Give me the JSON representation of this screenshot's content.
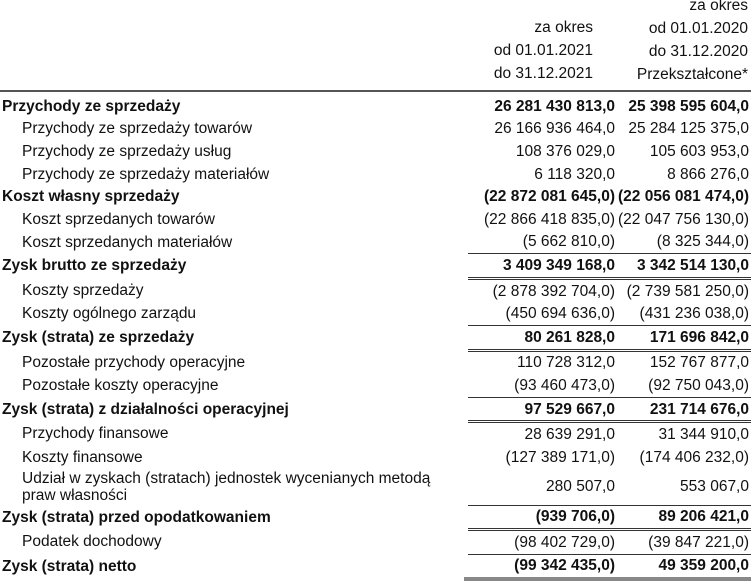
{
  "header": {
    "col_2021": [
      "za okres",
      "od 01.01.2021",
      "do 31.12.2021"
    ],
    "col_2020": [
      "za okres",
      "od 01.01.2020",
      "do 31.12.2020",
      "Przekształcone*"
    ]
  },
  "rows": [
    {
      "label": "Przychody ze sprzedaży",
      "v2021": "26 281 430 813,0",
      "v2020": "25 398 595 604,0",
      "bold": true
    },
    {
      "label": "Przychody ze sprzedaży towarów",
      "v2021": "26 166 936 464,0",
      "v2020": "25 284 125 375,0"
    },
    {
      "label": "Przychody ze sprzedaży usług",
      "v2021": "108 376 029,0",
      "v2020": "105 603 953,0"
    },
    {
      "label": "Przychody ze sprzedaży materiałów",
      "v2021": "6 118 320,0",
      "v2020": "8 866 276,0"
    },
    {
      "label": "Koszt własny sprzedaży",
      "v2021": "(22 872 081 645,0)",
      "v2020": "(22 056 081 474,0)",
      "bold": true
    },
    {
      "label": "Koszt sprzedanych towarów",
      "v2021": "(22 866 418 835,0)",
      "v2020": "(22 047 756 130,0)"
    },
    {
      "label": "Koszt sprzedanych materiałów",
      "v2021": "(5 662 810,0)",
      "v2020": "(8 325 344,0)"
    },
    {
      "label": "Zysk brutto ze sprzedaży",
      "v2021": "3 409 349 168,0",
      "v2020": "3 342 514 130,0",
      "bold": true
    },
    {
      "label": "Koszty sprzedaży",
      "v2021": "(2 878 392 704,0)",
      "v2020": "(2 739 581 250,0)"
    },
    {
      "label": "Koszty ogólnego zarządu",
      "v2021": "(450 694 636,0)",
      "v2020": "(431 236 038,0)"
    },
    {
      "label": "Zysk (strata) ze sprzedaży",
      "v2021": "80 261 828,0",
      "v2020": "171 696 842,0",
      "bold": true
    },
    {
      "label": "Pozostałe przychody operacyjne",
      "v2021": "110 728 312,0",
      "v2020": "152 767 877,0"
    },
    {
      "label": "Pozostałe koszty operacyjne",
      "v2021": "(93 460 473,0)",
      "v2020": "(92 750 043,0)"
    },
    {
      "label": "Zysk (strata) z działalności operacyjnej",
      "v2021": "97 529 667,0",
      "v2020": "231 714 676,0",
      "bold": true
    },
    {
      "label": "Przychody finansowe",
      "v2021": "28 639 291,0",
      "v2020": "31 344 910,0"
    },
    {
      "label": "Koszty finansowe",
      "v2021": "(127 389 171,0)",
      "v2020": "(174 406 232,0)"
    },
    {
      "label": "Udział w zyskach (stratach) jednostek wycenianych metodą praw własności",
      "v2021": "280 507,0",
      "v2020": "553 067,0",
      "two": true
    },
    {
      "label": "Zysk (strata) przed opodatkowaniem",
      "v2021": "(939 706,0)",
      "v2020": "89 206 421,0",
      "bold": true
    },
    {
      "label": "Podatek dochodowy",
      "v2021": "(98 402 729,0)",
      "v2020": "(39 847 221,0)"
    },
    {
      "label": "Zysk (strata) netto",
      "v2021": "(99 342 435,0)",
      "v2020": "49 359 200,0",
      "bold": true
    }
  ]
}
